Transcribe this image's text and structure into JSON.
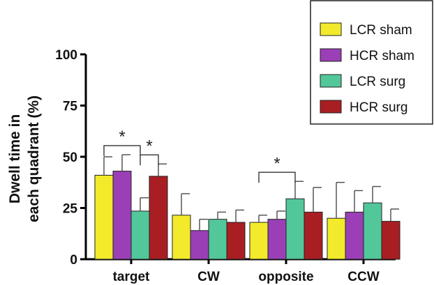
{
  "chart_data": {
    "type": "bar",
    "title": "",
    "xlabel": "",
    "ylabel_lines": [
      "Dwell time in",
      "each quadrant (%)"
    ],
    "ylim": [
      0,
      100
    ],
    "yticks": [
      0,
      25,
      50,
      75,
      100
    ],
    "categories": [
      "target",
      "CW",
      "opposite",
      "CCW"
    ],
    "series": [
      {
        "name": "LCR sham",
        "color": "#f2ea2a",
        "values": [
          41,
          21.5,
          18,
          20
        ],
        "errors": [
          9,
          10.5,
          3.5,
          17.5
        ]
      },
      {
        "name": "HCR sham",
        "color": "#9a3fb6",
        "values": [
          43,
          14,
          19.5,
          23
        ],
        "errors": [
          8,
          5.5,
          4,
          10.5
        ]
      },
      {
        "name": "LCR surg",
        "color": "#52c79a",
        "values": [
          23.5,
          19.5,
          29.5,
          27.5
        ],
        "errors": [
          6.5,
          3.5,
          8.5,
          8
        ]
      },
      {
        "name": "HCR surg",
        "color": "#a91e22",
        "values": [
          40.5,
          18,
          23,
          18.5
        ],
        "errors": [
          6,
          6,
          12,
          6
        ]
      }
    ],
    "legend_position": "top-right",
    "grid": false,
    "significance": [
      {
        "category": "target",
        "from_series": 0,
        "to_series": 2,
        "label": "*"
      },
      {
        "category": "target",
        "from_series": 2,
        "to_series": 3,
        "label": "*"
      },
      {
        "category": "opposite",
        "from_series": 0,
        "to_series": 2,
        "label": "*"
      }
    ]
  }
}
